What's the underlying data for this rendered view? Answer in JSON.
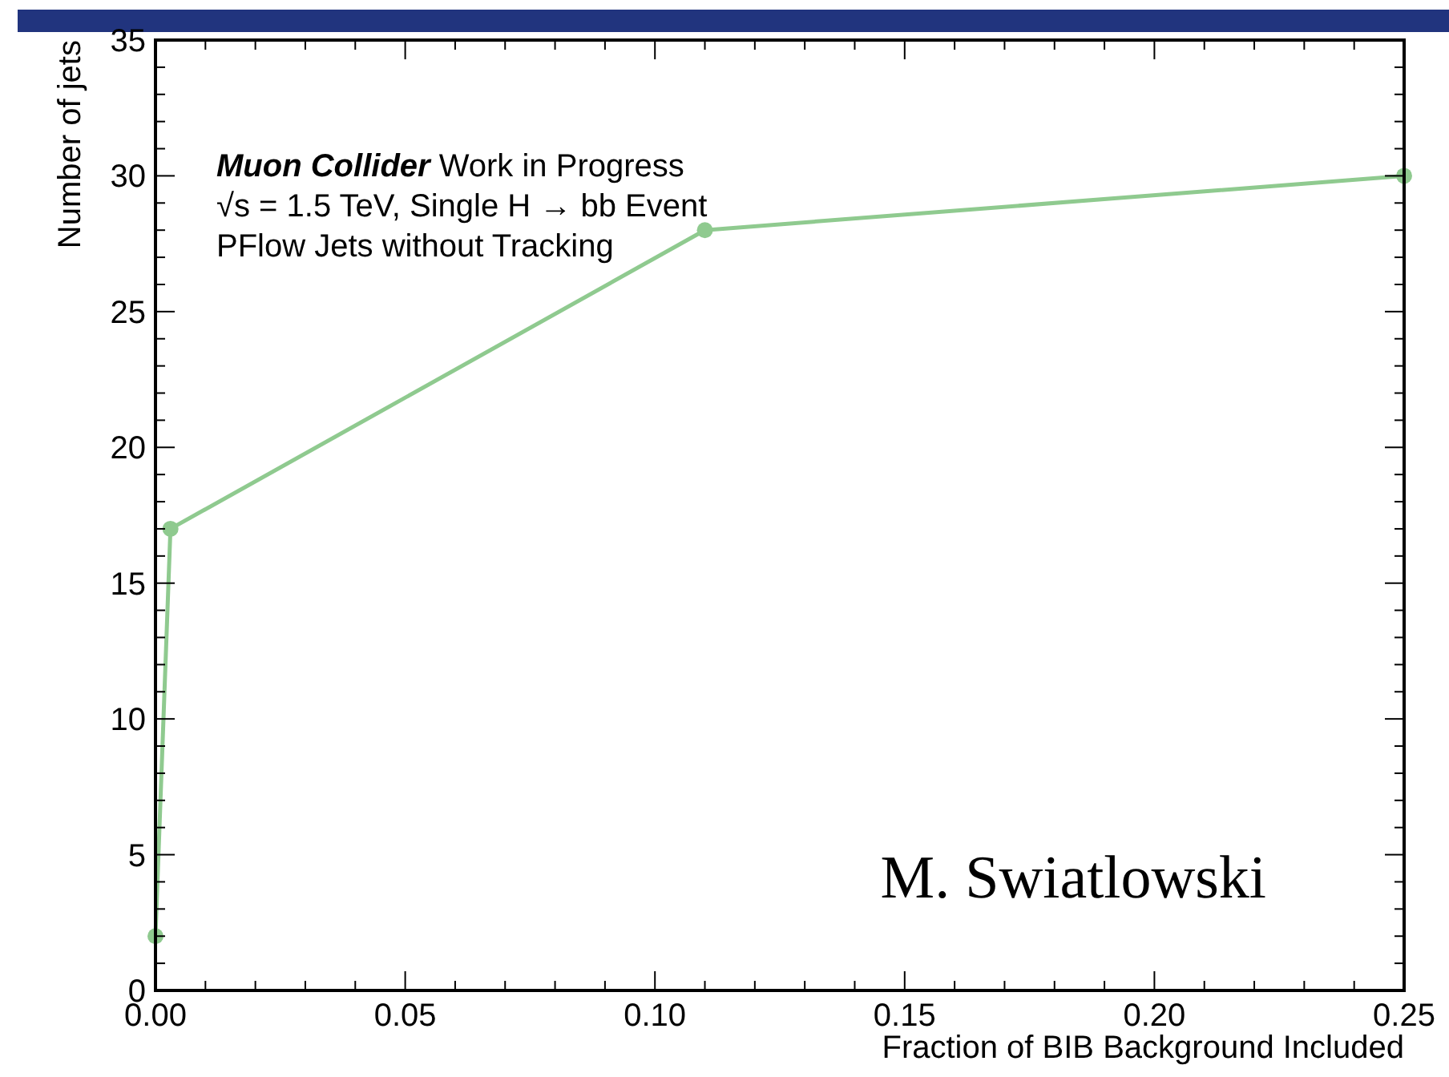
{
  "chart_data": {
    "type": "line",
    "xlabel": "Fraction of BIB Background Included",
    "ylabel": "Number of jets",
    "x": [
      0,
      0.003,
      0.11,
      0.25
    ],
    "series": [
      {
        "color": "#8fca8f",
        "values": [
          2,
          17,
          28,
          30
        ]
      }
    ],
    "xlim": [
      0,
      0.25
    ],
    "xticks": [
      {
        "value": 0,
        "label": "0.00"
      },
      {
        "value": 0.05,
        "label": "0.05"
      },
      {
        "value": 0.1,
        "label": "0.10"
      },
      {
        "value": 0.15,
        "label": "0.15"
      },
      {
        "value": 0.2,
        "label": "0.20"
      },
      {
        "value": 0.25,
        "label": "0.25"
      }
    ],
    "ylim": [
      0,
      35
    ],
    "yticks": [
      0,
      5,
      10,
      15,
      20,
      25,
      30,
      35
    ],
    "marker": "circle",
    "line_style": "solid",
    "grid": false,
    "annotations": [
      "Muon Collider Work in Progress",
      "√s = 1.5 TeV, Single H → bb Event",
      "PFlow Jets without Tracking",
      "M. Swiatlowski"
    ]
  }
}
